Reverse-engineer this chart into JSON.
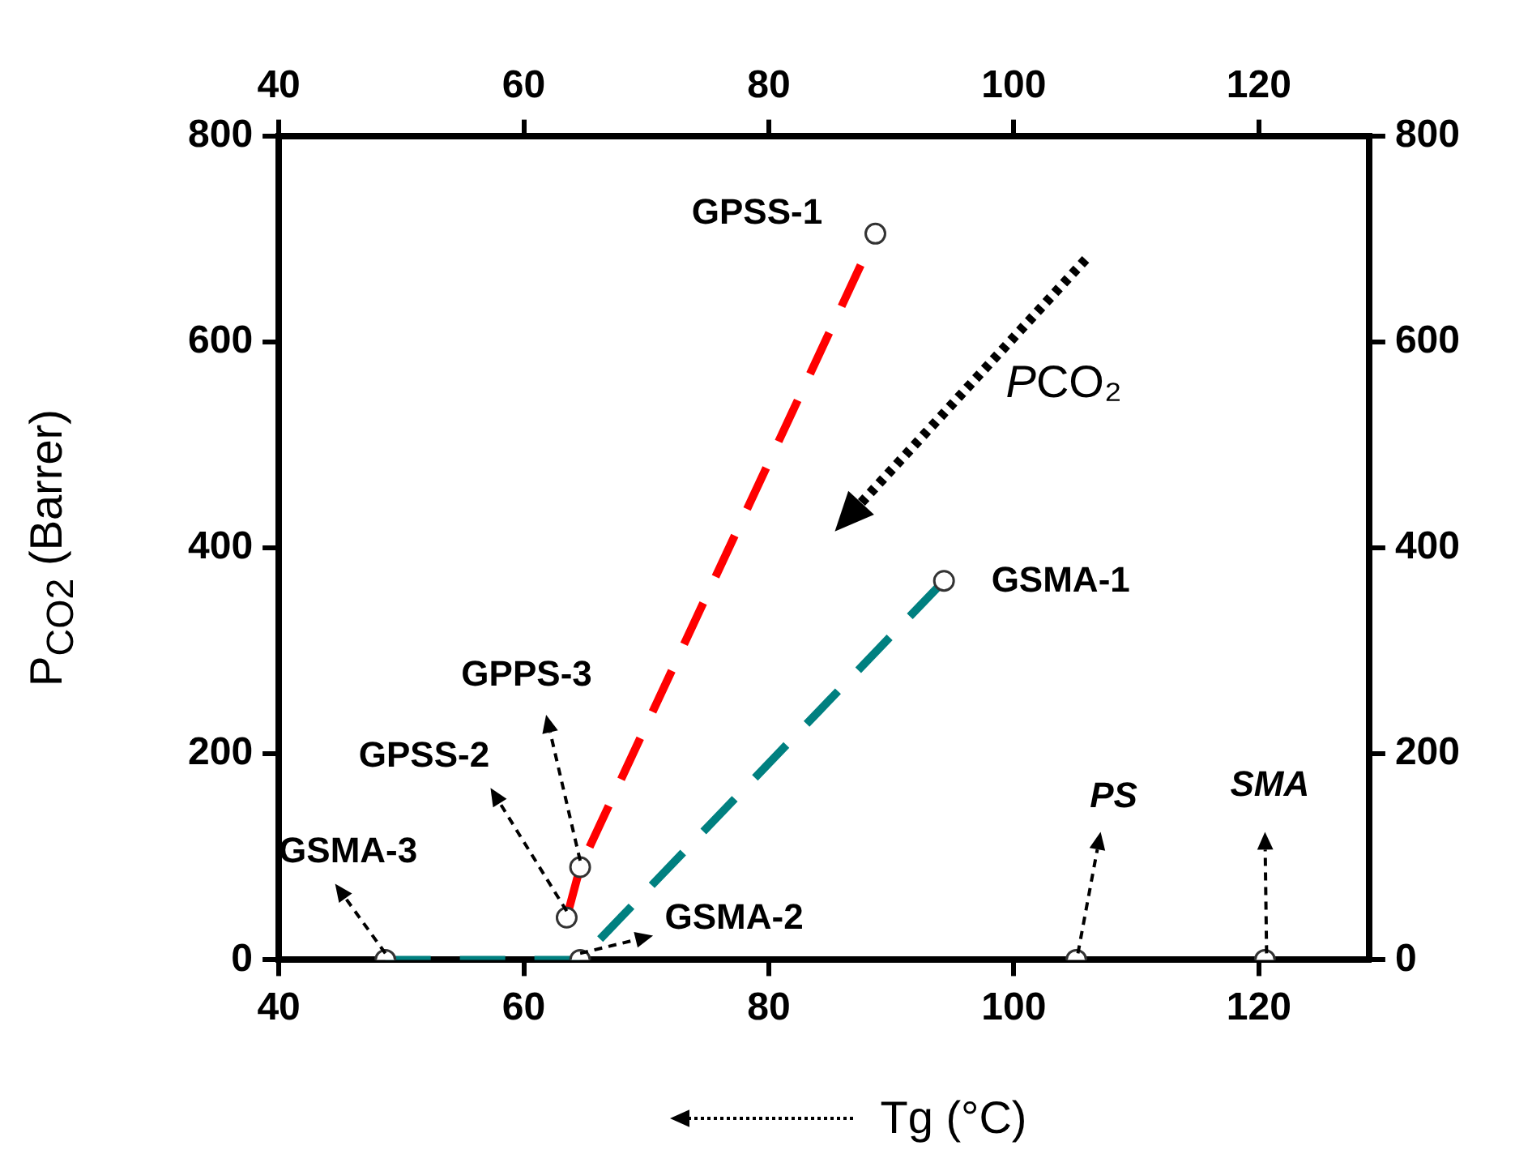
{
  "chart_data": {
    "type": "line",
    "xlabel": "Tg (°C)",
    "ylabel": "P$_{CO2}$ (Barrer)",
    "xlim": [
      40,
      129
    ],
    "xticks": [
      40,
      60,
      80,
      100,
      120
    ],
    "x2lim": [
      40,
      129
    ],
    "x2ticks": [
      40,
      60,
      80,
      100,
      120
    ],
    "ylim": [
      0,
      800
    ],
    "yticks": [
      0,
      200,
      400,
      600,
      800
    ],
    "y2lim": [
      0,
      800
    ],
    "y2ticks": [
      0,
      200,
      400,
      600,
      800
    ],
    "marker": "circle",
    "line_style": "dashed",
    "legend": false,
    "series": [
      {
        "color": "#ff0000",
        "x": [
          63.5,
          64.6,
          88.7
        ],
        "values": [
          41,
          90,
          705
        ]
      },
      {
        "color": "#008080",
        "x": [
          48.7,
          64.6,
          94.3
        ],
        "values": [
          0,
          0,
          368
        ]
      },
      {
        "type": "scatter",
        "color": "#333333",
        "x": [
          105.1,
          120.5
        ],
        "values": [
          0,
          0
        ]
      }
    ],
    "annotations": [
      {
        "text": "GPSS-1",
        "x": 88.7,
        "y": 705
      },
      {
        "text": "GSMA-1",
        "x": 94.3,
        "y": 368
      },
      {
        "text": "GPPS-3",
        "x": 64.6,
        "y": 90
      },
      {
        "text": "GPSS-2",
        "x": 63.5,
        "y": 41
      },
      {
        "text": "GSMA-3",
        "x": 48.7,
        "y": 0
      },
      {
        "text": "GSMA-2",
        "x": 64.6,
        "y": 0
      },
      {
        "text": "PS",
        "x": 105.1,
        "y": 0
      },
      {
        "text": "SMA",
        "x": 120.5,
        "y": 0
      },
      "PCO₂"
    ]
  }
}
